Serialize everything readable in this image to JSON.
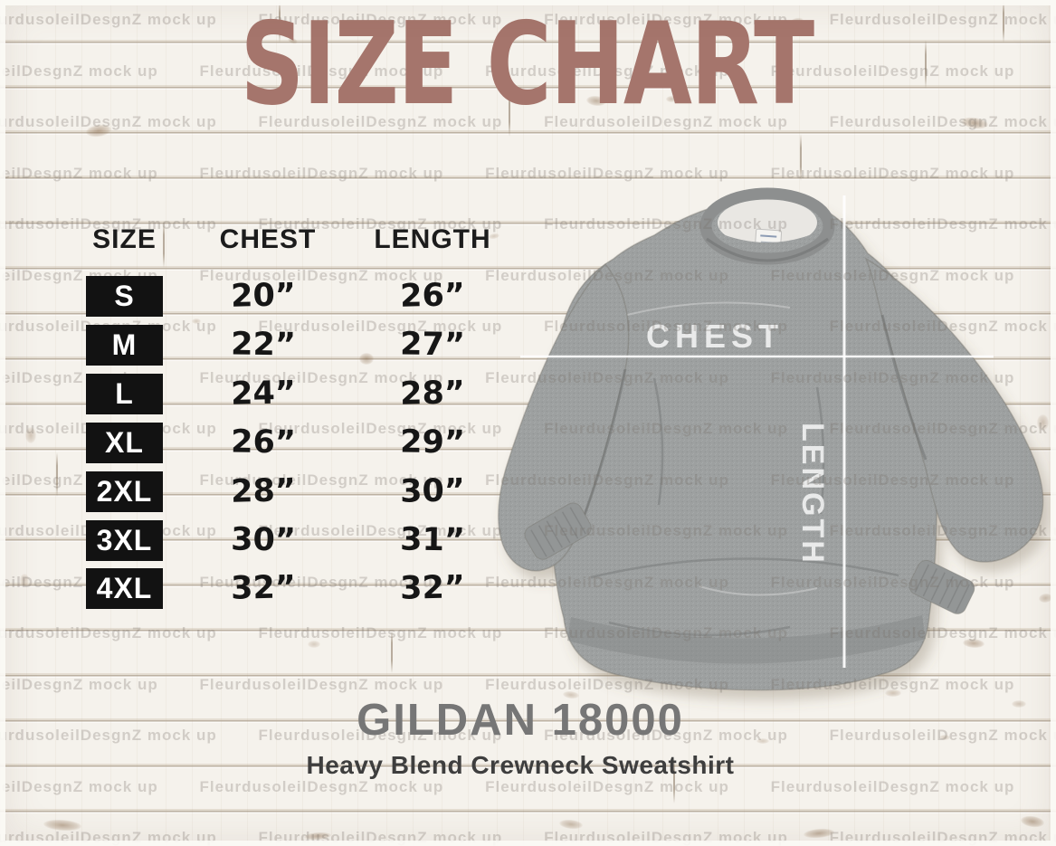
{
  "title": "SIZE CHART",
  "size_table": {
    "headers": [
      "SIZE",
      "CHEST",
      "LENGTH"
    ],
    "rows": [
      {
        "size": "S",
        "chest": "20”",
        "length": "26”"
      },
      {
        "size": "M",
        "chest": "22”",
        "length": "27”"
      },
      {
        "size": "L",
        "chest": "24”",
        "length": "28”"
      },
      {
        "size": "XL",
        "chest": "26”",
        "length": "29”"
      },
      {
        "size": "2XL",
        "chest": "28”",
        "length": "30”"
      },
      {
        "size": "3XL",
        "chest": "30”",
        "length": "31”"
      },
      {
        "size": "4XL",
        "chest": "32”",
        "length": "32”"
      }
    ]
  },
  "mockup": {
    "chest_label": "CHEST",
    "length_label": "LENGTH"
  },
  "product": {
    "model": "GILDAN 18000",
    "name": "Heavy Blend Crewneck Sweatshirt"
  },
  "watermark": {
    "text": "FleurdusoleilDesgnZ mock up"
  },
  "colors": {
    "title_text": "#a5756c",
    "table_text": "#161616",
    "size_box_bg": "#121212",
    "size_box_text": "#ffffff",
    "model_text": "#767676",
    "subtitle_text": "#3e3e3e",
    "sweatshirt_gray": "#9da0a0",
    "measure_line": "#ffffff",
    "wood_background": "#f5f2ec"
  },
  "chart_data": {
    "type": "table",
    "title": "SIZE CHART",
    "columns": [
      "SIZE",
      "CHEST",
      "LENGTH"
    ],
    "categories": [
      "S",
      "M",
      "L",
      "XL",
      "2XL",
      "3XL",
      "4XL"
    ],
    "series": [
      {
        "name": "CHEST",
        "values": [
          20,
          22,
          24,
          26,
          28,
          30,
          32
        ]
      },
      {
        "name": "LENGTH",
        "values": [
          26,
          27,
          28,
          29,
          30,
          31,
          32
        ]
      }
    ],
    "units": "inches",
    "notes": "Gildan 18000 Heavy Blend Crewneck Sweatshirt size chart"
  }
}
